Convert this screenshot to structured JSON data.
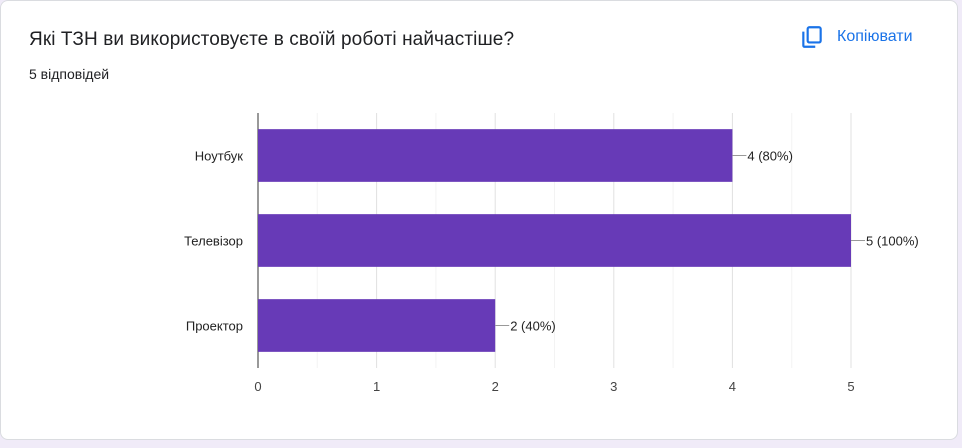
{
  "question": {
    "title": "Які ТЗН ви використовуєте в своїй роботі найчастіше?",
    "responses": "5 відповідей"
  },
  "actions": {
    "copy_label": "Копіювати",
    "copy_icon": "copy-icon"
  },
  "colors": {
    "bar": "#673ab7",
    "copy": "#1a73e8"
  },
  "chart_data": {
    "type": "bar",
    "orientation": "horizontal",
    "categories": [
      "Ноутбук",
      "Телевізор",
      "Проектор"
    ],
    "values": [
      4,
      5,
      2
    ],
    "data_labels": [
      "4 (80%)",
      "5 (100%)",
      "2 (40%)"
    ],
    "x_ticks": [
      "0",
      "1",
      "2",
      "3",
      "4",
      "5"
    ],
    "xlim": [
      0,
      5
    ],
    "grid": true
  }
}
